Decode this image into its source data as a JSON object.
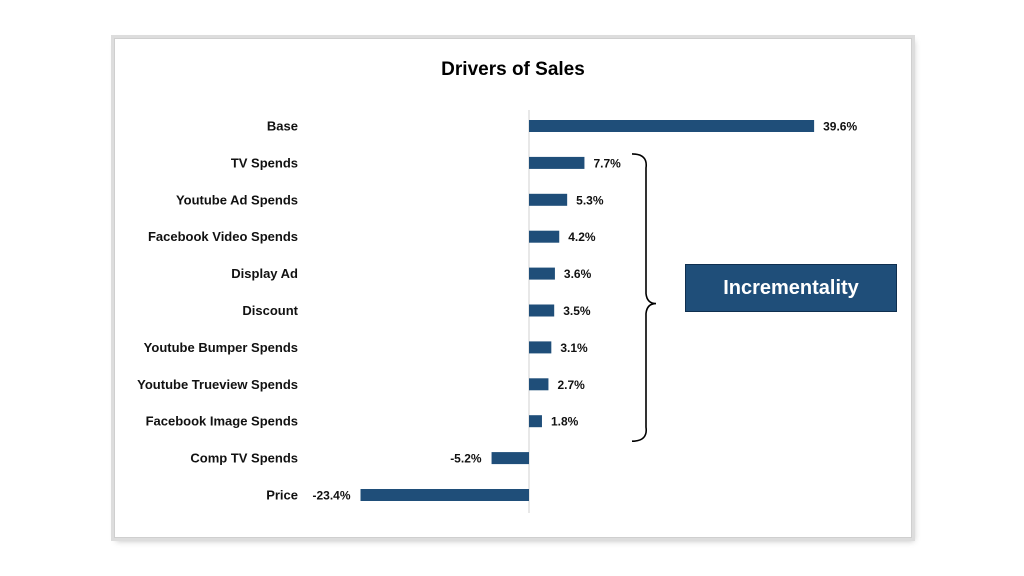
{
  "chart_data": {
    "type": "bar",
    "orientation": "horizontal",
    "title": "Drivers of Sales",
    "categories": [
      "Base",
      "TV Spends",
      "Youtube Ad Spends",
      "Facebook Video Spends",
      "Display Ad",
      "Discount",
      "Youtube Bumper Spends",
      "Youtube Trueview Spends",
      "Facebook Image Spends",
      "Comp TV Spends",
      "Price"
    ],
    "values": [
      39.6,
      7.7,
      5.3,
      4.2,
      3.6,
      3.5,
      3.1,
      2.7,
      1.8,
      -5.2,
      -23.4
    ],
    "value_labels": [
      "39.6%",
      "7.7%",
      "5.3%",
      "4.2%",
      "3.6%",
      "3.5%",
      "3.1%",
      "2.7%",
      "1.8%",
      "-5.2%",
      "-23.4%"
    ],
    "unit": "%",
    "bar_color": "#1f4e79",
    "grid": false,
    "annotation": {
      "text": "Incrementality",
      "spans": [
        "TV Spends",
        "Facebook Image Spends"
      ],
      "style": "right-brace-callout"
    }
  }
}
